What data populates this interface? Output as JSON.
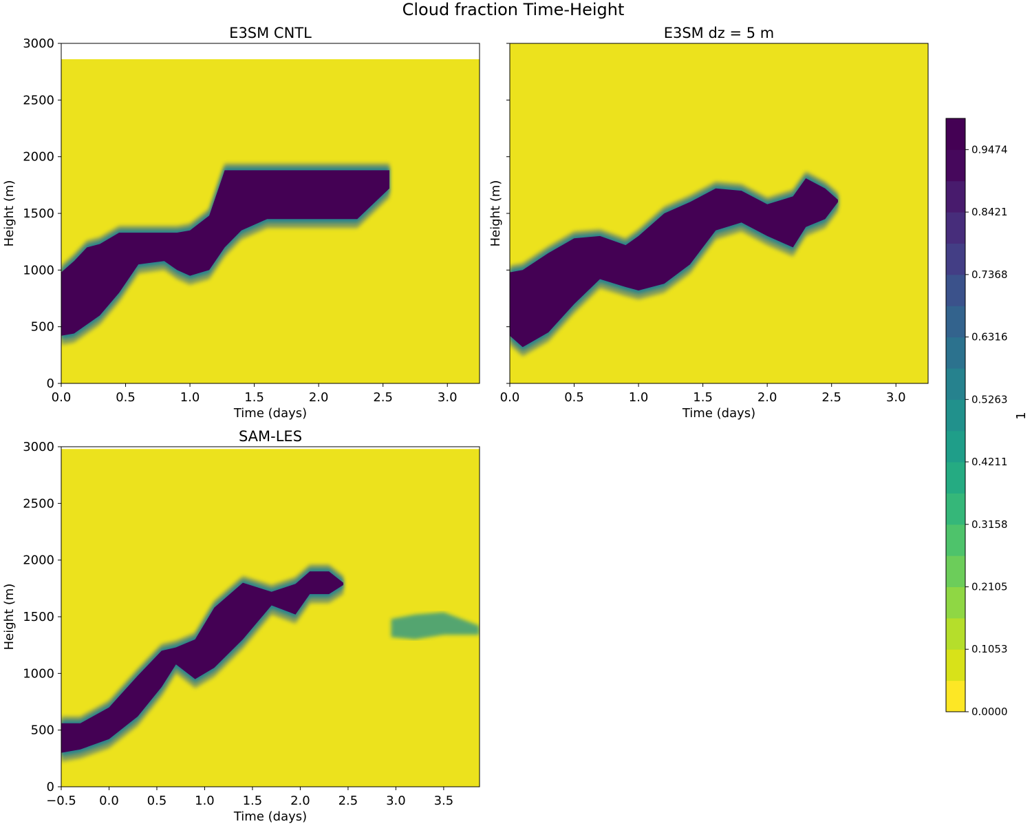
{
  "figure": {
    "title": "Cloud fraction Time-Height",
    "background_color": "#ffffff",
    "field_color": "#ece21d"
  },
  "chart_data": [
    {
      "type": "heatmap",
      "title": "E3SM CNTL",
      "xlabel": "Time (days)",
      "ylabel": "Height (m)",
      "xlim": [
        0.0,
        3.25
      ],
      "ylim": [
        0,
        3000
      ],
      "xticks": [
        0.0,
        0.5,
        1.0,
        1.5,
        2.0,
        2.5,
        3.0
      ],
      "xtick_labels": [
        "0.0",
        "0.5",
        "1.0",
        "1.5",
        "2.0",
        "2.5",
        "3.0"
      ],
      "yticks": [
        0,
        500,
        1000,
        1500,
        2000,
        2500,
        3000
      ],
      "ytick_labels": [
        "0",
        "500",
        "1000",
        "1500",
        "2000",
        "2500",
        "3000"
      ],
      "show_ytick_labels": true,
      "data_top_height": 2860,
      "cloud_layer": {
        "description": "stepwise rising cloud deck",
        "time": [
          0.0,
          0.1,
          0.2,
          0.3,
          0.45,
          0.6,
          0.8,
          0.9,
          1.0,
          1.15,
          1.27,
          1.4,
          1.6,
          1.8,
          2.0,
          2.3,
          2.55
        ],
        "top": [
          980,
          1080,
          1200,
          1230,
          1330,
          1330,
          1330,
          1330,
          1350,
          1480,
          1880,
          1880,
          1880,
          1880,
          1880,
          1880,
          1880
        ],
        "bottom": [
          420,
          440,
          520,
          600,
          800,
          1050,
          1080,
          1000,
          950,
          1000,
          1200,
          1350,
          1450,
          1450,
          1450,
          1450,
          1720
        ],
        "core_value": 1.0
      }
    },
    {
      "type": "heatmap",
      "title": "E3SM dz = 5 m",
      "xlabel": "Time (days)",
      "ylabel": "Height (m)",
      "xlim": [
        0.0,
        3.25
      ],
      "ylim": [
        0,
        3000
      ],
      "xticks": [
        0.0,
        0.5,
        1.0,
        1.5,
        2.0,
        2.5,
        3.0
      ],
      "xtick_labels": [
        "0.0",
        "0.5",
        "1.0",
        "1.5",
        "2.0",
        "2.5",
        "3.0"
      ],
      "yticks": [
        0,
        500,
        1000,
        1500,
        2000,
        2500,
        3000
      ],
      "ytick_labels": [
        "0",
        "500",
        "1000",
        "1500",
        "2000",
        "2500",
        "3000"
      ],
      "show_ytick_labels": false,
      "data_top_height": 3000,
      "cloud_layer": {
        "description": "smoothly rising solid cloud deck",
        "time": [
          0.0,
          0.1,
          0.3,
          0.5,
          0.7,
          0.9,
          1.0,
          1.2,
          1.4,
          1.6,
          1.8,
          2.0,
          2.2,
          2.3,
          2.45,
          2.55
        ],
        "top": [
          980,
          1000,
          1150,
          1280,
          1300,
          1220,
          1300,
          1500,
          1600,
          1720,
          1700,
          1580,
          1650,
          1810,
          1720,
          1620
        ],
        "bottom": [
          420,
          320,
          450,
          700,
          920,
          850,
          820,
          880,
          1050,
          1350,
          1420,
          1300,
          1200,
          1380,
          1450,
          1600
        ],
        "core_value": 1.0
      }
    },
    {
      "type": "heatmap",
      "title": "SAM-LES",
      "xlabel": "Time (days)",
      "ylabel": "Height (m)",
      "xlim": [
        -0.5,
        3.875
      ],
      "ylim": [
        0,
        3000
      ],
      "xticks": [
        -0.5,
        0.0,
        0.5,
        1.0,
        1.5,
        2.0,
        2.5,
        3.0,
        3.5
      ],
      "xtick_labels": [
        "−0.5",
        "0.0",
        "0.5",
        "1.0",
        "1.5",
        "2.0",
        "2.5",
        "3.0",
        "3.5"
      ],
      "yticks": [
        0,
        500,
        1000,
        1500,
        2000,
        2500,
        3000
      ],
      "ytick_labels": [
        "0",
        "500",
        "1000",
        "1500",
        "2000",
        "2500",
        "3000"
      ],
      "show_ytick_labels": true,
      "data_top_height": 2980,
      "cloud_layer": {
        "description": "rising cloud deck with dissipating tail and late thin layer",
        "time": [
          -0.5,
          -0.3,
          0.0,
          0.3,
          0.55,
          0.7,
          0.9,
          1.1,
          1.4,
          1.7,
          1.95,
          2.1,
          2.3,
          2.45
        ],
        "top": [
          560,
          560,
          700,
          980,
          1200,
          1230,
          1300,
          1580,
          1800,
          1720,
          1790,
          1900,
          1900,
          1800
        ],
        "bottom": [
          300,
          330,
          420,
          620,
          880,
          1080,
          950,
          1050,
          1300,
          1600,
          1520,
          1700,
          1700,
          1780
        ],
        "core_value": 1.0,
        "secondary_layer": {
          "time": [
            2.95,
            3.2,
            3.5,
            3.875
          ],
          "top": [
            1480,
            1520,
            1540,
            1420
          ],
          "bottom": [
            1320,
            1300,
            1340,
            1340
          ]
        }
      }
    }
  ],
  "colorbar": {
    "label": "1",
    "tick_values": [
      0.0,
      0.1053,
      0.2105,
      0.3158,
      0.4211,
      0.5263,
      0.6316,
      0.7368,
      0.8421,
      0.9474
    ],
    "tick_labels": [
      "0.0000",
      "0.1053",
      "0.2105",
      "0.3158",
      "0.4211",
      "0.5263",
      "0.6316",
      "0.7368",
      "0.8421",
      "0.9474"
    ],
    "levels": 19,
    "range": [
      0.0,
      1.0
    ],
    "colors": [
      "#fde725",
      "#d8e219",
      "#b5de2b",
      "#8fd744",
      "#6ccd5a",
      "#4ec36b",
      "#35b779",
      "#25ab82",
      "#1f9e89",
      "#21918c",
      "#26828e",
      "#2c728e",
      "#33638d",
      "#3b528b",
      "#433e85",
      "#472d7b",
      "#481b6d",
      "#46085c",
      "#440154"
    ]
  }
}
